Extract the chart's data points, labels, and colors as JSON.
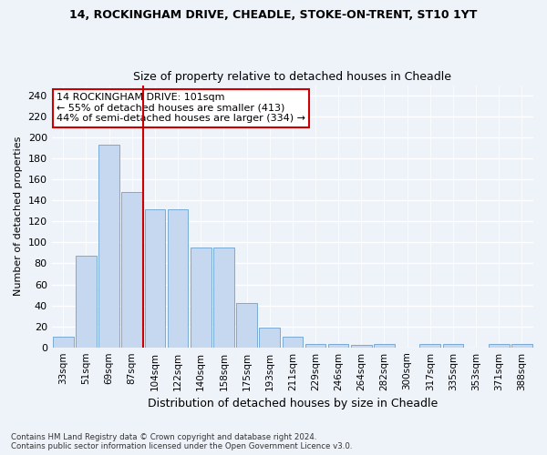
{
  "title1": "14, ROCKINGHAM DRIVE, CHEADLE, STOKE-ON-TRENT, ST10 1YT",
  "title2": "Size of property relative to detached houses in Cheadle",
  "xlabel": "Distribution of detached houses by size in Cheadle",
  "ylabel": "Number of detached properties",
  "categories": [
    "33sqm",
    "51sqm",
    "69sqm",
    "87sqm",
    "104sqm",
    "122sqm",
    "140sqm",
    "158sqm",
    "175sqm",
    "193sqm",
    "211sqm",
    "229sqm",
    "246sqm",
    "264sqm",
    "282sqm",
    "300sqm",
    "317sqm",
    "335sqm",
    "353sqm",
    "371sqm",
    "388sqm"
  ],
  "values": [
    10,
    87,
    193,
    148,
    132,
    132,
    95,
    95,
    42,
    19,
    10,
    3,
    3,
    2,
    3,
    0,
    3,
    3,
    0,
    3,
    3
  ],
  "bar_color": "#c5d8f0",
  "bar_edge_color": "#7aaad4",
  "vline_color": "#cc0000",
  "annotation_text": "14 ROCKINGHAM DRIVE: 101sqm\n← 55% of detached houses are smaller (413)\n44% of semi-detached houses are larger (334) →",
  "annotation_box_color": "#ffffff",
  "annotation_box_edge": "#cc0000",
  "ylim": [
    0,
    250
  ],
  "yticks": [
    0,
    20,
    40,
    60,
    80,
    100,
    120,
    140,
    160,
    180,
    200,
    220,
    240
  ],
  "footnote": "Contains HM Land Registry data © Crown copyright and database right 2024.\nContains public sector information licensed under the Open Government Licence v3.0.",
  "bg_color": "#eef2f9",
  "grid_color": "#ffffff"
}
